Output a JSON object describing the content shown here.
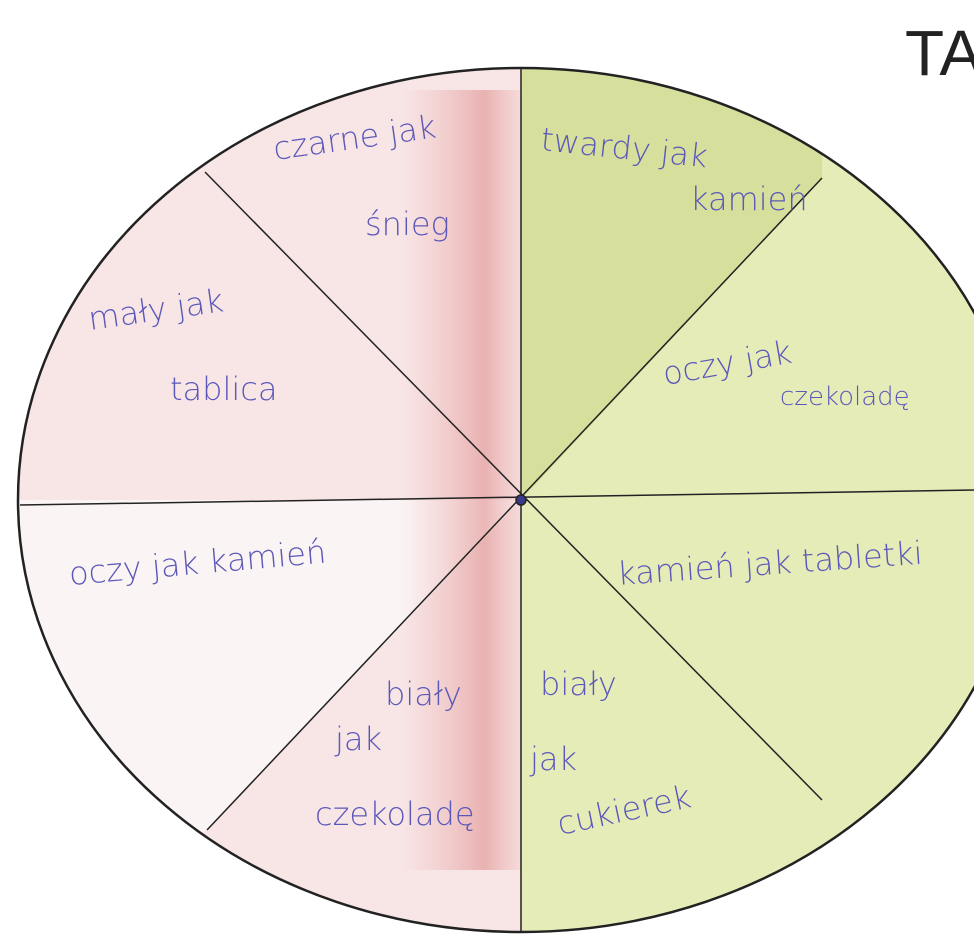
{
  "title": "TA",
  "sectors": [
    {
      "lines": [
        "czarne jak",
        "śnieg"
      ]
    },
    {
      "lines": [
        "twardy jak",
        "kamień"
      ]
    },
    {
      "lines": [
        "oczy jak",
        "czekoladę"
      ]
    },
    {
      "lines": [
        "kamień jak tabletki"
      ]
    },
    {
      "lines": [
        "biały",
        "jak",
        "cukierek"
      ]
    },
    {
      "lines": [
        "biały",
        "jak",
        "czekoladę"
      ]
    },
    {
      "lines": [
        "oczy jak kamień"
      ]
    },
    {
      "lines": [
        "mały jak",
        "tablica"
      ]
    }
  ]
}
